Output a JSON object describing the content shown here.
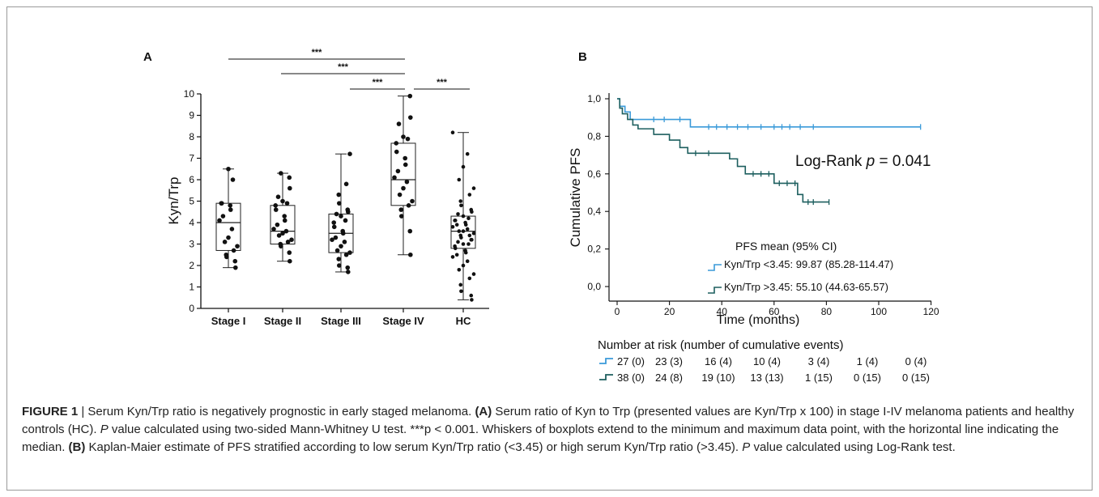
{
  "panel_a": {
    "label": "A",
    "chart_data": {
      "type": "box",
      "ylabel": "Kyn/Trp",
      "categories": [
        "Stage I",
        "Stage II",
        "Stage III",
        "Stage IV",
        "HC"
      ],
      "ylim": [
        0,
        10
      ],
      "yticks": [
        "0",
        "1",
        "2",
        "3",
        "4",
        "5",
        "6",
        "7",
        "8",
        "9",
        "10"
      ],
      "boxes": [
        {
          "name": "Stage I",
          "min": 1.9,
          "q1": 2.7,
          "median": 4.0,
          "q3": 4.9,
          "max": 6.5,
          "points": [
            1.9,
            2.2,
            2.4,
            2.5,
            2.7,
            2.9,
            3.1,
            3.3,
            3.7,
            4.1,
            4.3,
            4.6,
            4.8,
            4.9,
            4.9,
            6.0,
            6.5
          ]
        },
        {
          "name": "Stage II",
          "min": 2.2,
          "q1": 3.0,
          "median": 3.6,
          "q3": 4.8,
          "max": 6.3,
          "points": [
            2.2,
            2.6,
            2.9,
            3.0,
            3.1,
            3.2,
            3.4,
            3.5,
            3.6,
            3.7,
            3.9,
            4.1,
            4.3,
            4.6,
            4.8,
            4.9,
            5.0,
            5.2,
            5.6,
            6.1,
            6.3
          ]
        },
        {
          "name": "Stage III",
          "min": 1.7,
          "q1": 2.6,
          "median": 3.5,
          "q3": 4.4,
          "max": 7.2,
          "points": [
            1.7,
            1.9,
            2.0,
            2.3,
            2.5,
            2.6,
            2.7,
            2.9,
            3.1,
            3.2,
            3.3,
            3.5,
            3.6,
            3.8,
            4.0,
            4.1,
            4.3,
            4.4,
            4.5,
            4.6,
            4.9,
            5.3,
            5.8,
            7.2
          ]
        },
        {
          "name": "Stage IV",
          "min": 2.5,
          "q1": 4.8,
          "median": 6.0,
          "q3": 7.7,
          "max": 9.9,
          "points": [
            2.5,
            3.6,
            4.3,
            4.6,
            4.8,
            5.0,
            5.3,
            5.6,
            5.9,
            6.1,
            6.4,
            6.7,
            7.0,
            7.3,
            7.7,
            7.9,
            8.0,
            8.6,
            8.9,
            9.9
          ]
        },
        {
          "name": "HC",
          "min": 0.4,
          "q1": 2.8,
          "median": 3.6,
          "q3": 4.3,
          "max": 8.2,
          "points": [
            0.4,
            0.6,
            0.8,
            1.1,
            1.4,
            1.6,
            1.8,
            2.0,
            2.2,
            2.4,
            2.5,
            2.6,
            2.7,
            2.8,
            2.9,
            3.0,
            3.0,
            3.1,
            3.2,
            3.2,
            3.3,
            3.4,
            3.4,
            3.5,
            3.6,
            3.6,
            3.7,
            3.8,
            3.9,
            3.9,
            4.0,
            4.1,
            4.1,
            4.2,
            4.3,
            4.4,
            4.5,
            4.6,
            4.8,
            5.0,
            5.3,
            5.6,
            6.0,
            6.6,
            7.2,
            8.2
          ]
        }
      ],
      "brackets": [
        {
          "from": "Stage I",
          "to": "Stage IV",
          "label": "***"
        },
        {
          "from": "Stage II",
          "to": "Stage IV",
          "label": "***"
        },
        {
          "from": "Stage III",
          "to": "Stage IV",
          "label": "***"
        },
        {
          "from": "Stage IV",
          "to": "HC",
          "label": "***"
        }
      ]
    }
  },
  "panel_b": {
    "label": "B",
    "chart_data": {
      "type": "line",
      "xlabel": "Time (months)",
      "ylabel": "Cumulative PFS",
      "xlim": [
        0,
        120
      ],
      "ylim": [
        0,
        1.0
      ],
      "xticks": [
        "0",
        "20",
        "40",
        "60",
        "80",
        "100",
        "120"
      ],
      "yticks": [
        "0,0",
        "0,2",
        "0,4",
        "0,6",
        "0,8",
        "1,0"
      ],
      "annotation": "Log-Rank p = 0.041",
      "annotation_prefix": "Log-Rank ",
      "annotation_p": "p",
      "annotation_suffix": " = 0.041",
      "legend_title": "PFS mean (95% CI)",
      "series": [
        {
          "name": "Kyn/Trp <3.45: 99.87 (85.28-114.47)",
          "color": "#3a9ad9",
          "steps": [
            [
              0,
              1.0
            ],
            [
              1,
              0.96
            ],
            [
              3,
              0.93
            ],
            [
              5,
              0.89
            ],
            [
              28,
              0.85
            ],
            [
              116,
              0.85
            ]
          ],
          "censored": [
            14,
            18,
            24,
            35,
            38,
            42,
            46,
            50,
            55,
            60,
            63,
            66,
            70,
            75,
            116
          ]
        },
        {
          "name": "Kyn/Trp >3.45: 55.10 (44.63-65.57)",
          "color": "#1d5f5f",
          "steps": [
            [
              0,
              1.0
            ],
            [
              1,
              0.95
            ],
            [
              2,
              0.92
            ],
            [
              4,
              0.89
            ],
            [
              6,
              0.86
            ],
            [
              8,
              0.84
            ],
            [
              14,
              0.81
            ],
            [
              20,
              0.78
            ],
            [
              24,
              0.74
            ],
            [
              27,
              0.71
            ],
            [
              43,
              0.68
            ],
            [
              46,
              0.64
            ],
            [
              49,
              0.6
            ],
            [
              60,
              0.55
            ],
            [
              69,
              0.49
            ],
            [
              71,
              0.45
            ],
            [
              81,
              0.45
            ]
          ],
          "censored": [
            30,
            35,
            52,
            55,
            58,
            62,
            65,
            68,
            73,
            75,
            81
          ]
        }
      ],
      "risk_table": {
        "title": "Number at risk (number of cumulative events)",
        "rows": [
          {
            "color": "#3a9ad9",
            "values": [
              "27 (0)",
              "23 (3)",
              "16 (4)",
              "10 (4)",
              "3 (4)",
              "1 (4)",
              "0 (4)"
            ]
          },
          {
            "color": "#1d5f5f",
            "values": [
              "38 (0)",
              "24 (8)",
              "19 (10)",
              "13 (13)",
              "1 (15)",
              "0 (15)",
              "0 (15)"
            ]
          }
        ]
      }
    }
  },
  "caption": {
    "figure_label": "FIGURE 1",
    "sep": " | ",
    "t1": "Serum Kyn/Trp ratio is negatively prognostic in early staged melanoma. ",
    "a_label": "(A)",
    "t2": " Serum ratio of Kyn to Trp (presented values are Kyn/Trp x 100) in stage I-IV melanoma patients and healthy controls (HC). ",
    "p1": "P",
    "t3": " value calculated using two-sided Mann-Whitney U test. ***p < 0.001. Whiskers of boxplots extend to the minimum and maximum data point, with the horizontal line indicating the median. ",
    "b_label": "(B)",
    "t4": " Kaplan-Maier estimate of PFS stratified according to low serum Kyn/Trp ratio (<3.45) or high serum Kyn/Trp ratio (>3.45). ",
    "p2": "P",
    "t5": " value calculated using Log-Rank test."
  }
}
